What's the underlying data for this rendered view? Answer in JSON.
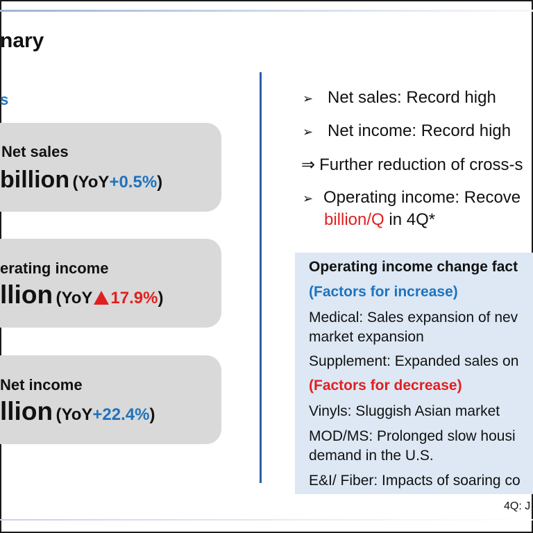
{
  "slide": {
    "title": "nary",
    "subhead": "s"
  },
  "cards": [
    {
      "label": "Net sales",
      "value": "billion",
      "yoy_prefix": "(YoY",
      "yoy_value": "+0.5%",
      "yoy_suffix": ")",
      "direction": "up",
      "color": "#1e73be"
    },
    {
      "label": "erating income",
      "value": "llion",
      "yoy_prefix": "(YoY",
      "yoy_value": "17.9%",
      "yoy_suffix": ")",
      "direction": "down",
      "color": "#e02020"
    },
    {
      "label": "Net income",
      "value": "llion",
      "yoy_prefix": "(YoY",
      "yoy_value": "+22.4%",
      "yoy_suffix": ")",
      "direction": "up",
      "color": "#1e73be"
    }
  ],
  "highlights": [
    {
      "marker": "➢",
      "text": "Net sales: Record high"
    },
    {
      "marker": "➢",
      "text": "Net income: Record high"
    },
    {
      "marker": "⇒",
      "text": "Further reduction of cross-s"
    },
    {
      "marker": "➢",
      "text": "Operating income: Recove",
      "line2": "billion/Q",
      "line2_rest": " in 4Q*"
    }
  ],
  "factors": {
    "heading": "Operating income change fact",
    "increase_heading": "(Factors for increase)",
    "increase_items": [
      "Medical: Sales expansion of nev",
      "market expansion",
      "Supplement: Expanded sales on"
    ],
    "decrease_heading": "(Factors for decrease)",
    "decrease_items": [
      "Vinyls: Sluggish Asian market",
      "MOD/MS: Prolonged slow housi",
      "demand in the U.S.",
      "E&I/ Fiber: Impacts of soaring co"
    ]
  },
  "footnote": "4Q: J",
  "colors": {
    "accent_blue": "#1e73be",
    "accent_red": "#e02020",
    "card_bg": "#d9d9d9",
    "factors_bg": "#dde8f4"
  }
}
